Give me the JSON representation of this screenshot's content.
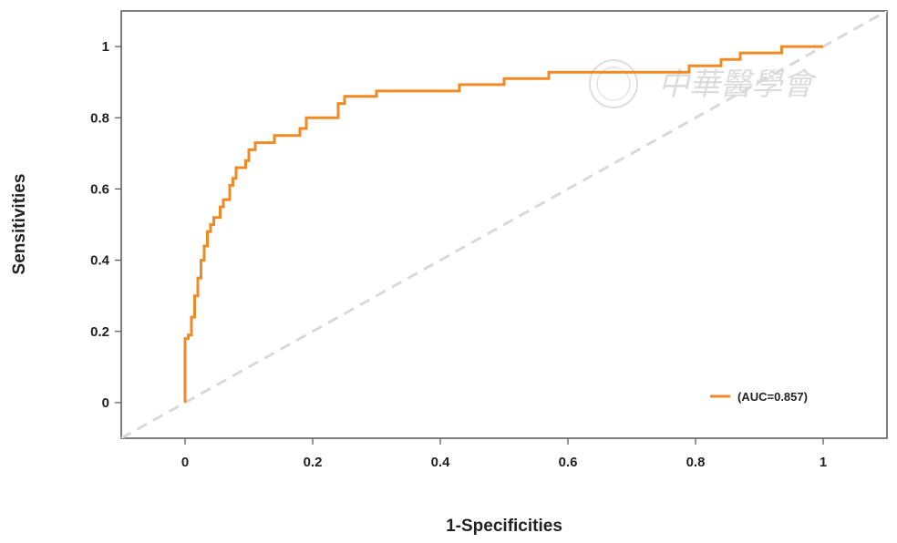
{
  "chart_data": {
    "type": "line",
    "xlabel": "1-Specificities",
    "ylabel": "Sensitivities",
    "xlim": [
      -0.1,
      1.1
    ],
    "ylim": [
      -0.1,
      1.1
    ],
    "x_ticks": [
      0,
      0.2,
      0.4,
      0.6,
      0.8,
      1
    ],
    "x_tick_labels": [
      "0",
      "0.2",
      "0.4",
      "0.6",
      "0.8",
      "1"
    ],
    "y_ticks": [
      0,
      0.2,
      0.4,
      0.6,
      0.8,
      1
    ],
    "y_tick_labels": [
      "0",
      "0.2",
      "0.4",
      "0.6",
      "0.8",
      "1"
    ],
    "grid": false,
    "legend_position": "bottom-right",
    "series": [
      {
        "name": "(AUC=0.857)",
        "color": "#f08a24",
        "style": "step",
        "points": [
          [
            0,
            0
          ],
          [
            0,
            0.1
          ],
          [
            0,
            0.18
          ],
          [
            0.005,
            0.18
          ],
          [
            0.005,
            0.19
          ],
          [
            0.01,
            0.19
          ],
          [
            0.01,
            0.24
          ],
          [
            0.015,
            0.24
          ],
          [
            0.015,
            0.3
          ],
          [
            0.02,
            0.3
          ],
          [
            0.02,
            0.35
          ],
          [
            0.025,
            0.35
          ],
          [
            0.025,
            0.4
          ],
          [
            0.03,
            0.4
          ],
          [
            0.03,
            0.44
          ],
          [
            0.035,
            0.44
          ],
          [
            0.035,
            0.48
          ],
          [
            0.04,
            0.48
          ],
          [
            0.04,
            0.5
          ],
          [
            0.045,
            0.5
          ],
          [
            0.045,
            0.52
          ],
          [
            0.055,
            0.52
          ],
          [
            0.055,
            0.55
          ],
          [
            0.06,
            0.55
          ],
          [
            0.06,
            0.57
          ],
          [
            0.07,
            0.57
          ],
          [
            0.07,
            0.61
          ],
          [
            0.075,
            0.61
          ],
          [
            0.075,
            0.63
          ],
          [
            0.08,
            0.63
          ],
          [
            0.08,
            0.66
          ],
          [
            0.095,
            0.66
          ],
          [
            0.095,
            0.68
          ],
          [
            0.1,
            0.68
          ],
          [
            0.1,
            0.71
          ],
          [
            0.11,
            0.71
          ],
          [
            0.11,
            0.73
          ],
          [
            0.14,
            0.73
          ],
          [
            0.14,
            0.75
          ],
          [
            0.18,
            0.75
          ],
          [
            0.18,
            0.77
          ],
          [
            0.19,
            0.77
          ],
          [
            0.19,
            0.8
          ],
          [
            0.24,
            0.8
          ],
          [
            0.24,
            0.84
          ],
          [
            0.25,
            0.84
          ],
          [
            0.25,
            0.86
          ],
          [
            0.3,
            0.86
          ],
          [
            0.3,
            0.875
          ],
          [
            0.43,
            0.875
          ],
          [
            0.43,
            0.893
          ],
          [
            0.5,
            0.893
          ],
          [
            0.5,
            0.91
          ],
          [
            0.57,
            0.91
          ],
          [
            0.57,
            0.928
          ],
          [
            0.79,
            0.928
          ],
          [
            0.79,
            0.946
          ],
          [
            0.84,
            0.946
          ],
          [
            0.84,
            0.964
          ],
          [
            0.87,
            0.964
          ],
          [
            0.87,
            0.982
          ],
          [
            0.935,
            0.982
          ],
          [
            0.935,
            1.0
          ],
          [
            1.0,
            1.0
          ]
        ]
      },
      {
        "name": "",
        "color": "#d9d9d9",
        "style": "dashed",
        "points": [
          [
            -0.1,
            -0.1
          ],
          [
            1.1,
            1.1
          ]
        ]
      }
    ],
    "legend": {
      "label": "(AUC=0.857)",
      "color": "#f08a24"
    }
  },
  "watermark": {
    "text": "中華醫學會"
  }
}
